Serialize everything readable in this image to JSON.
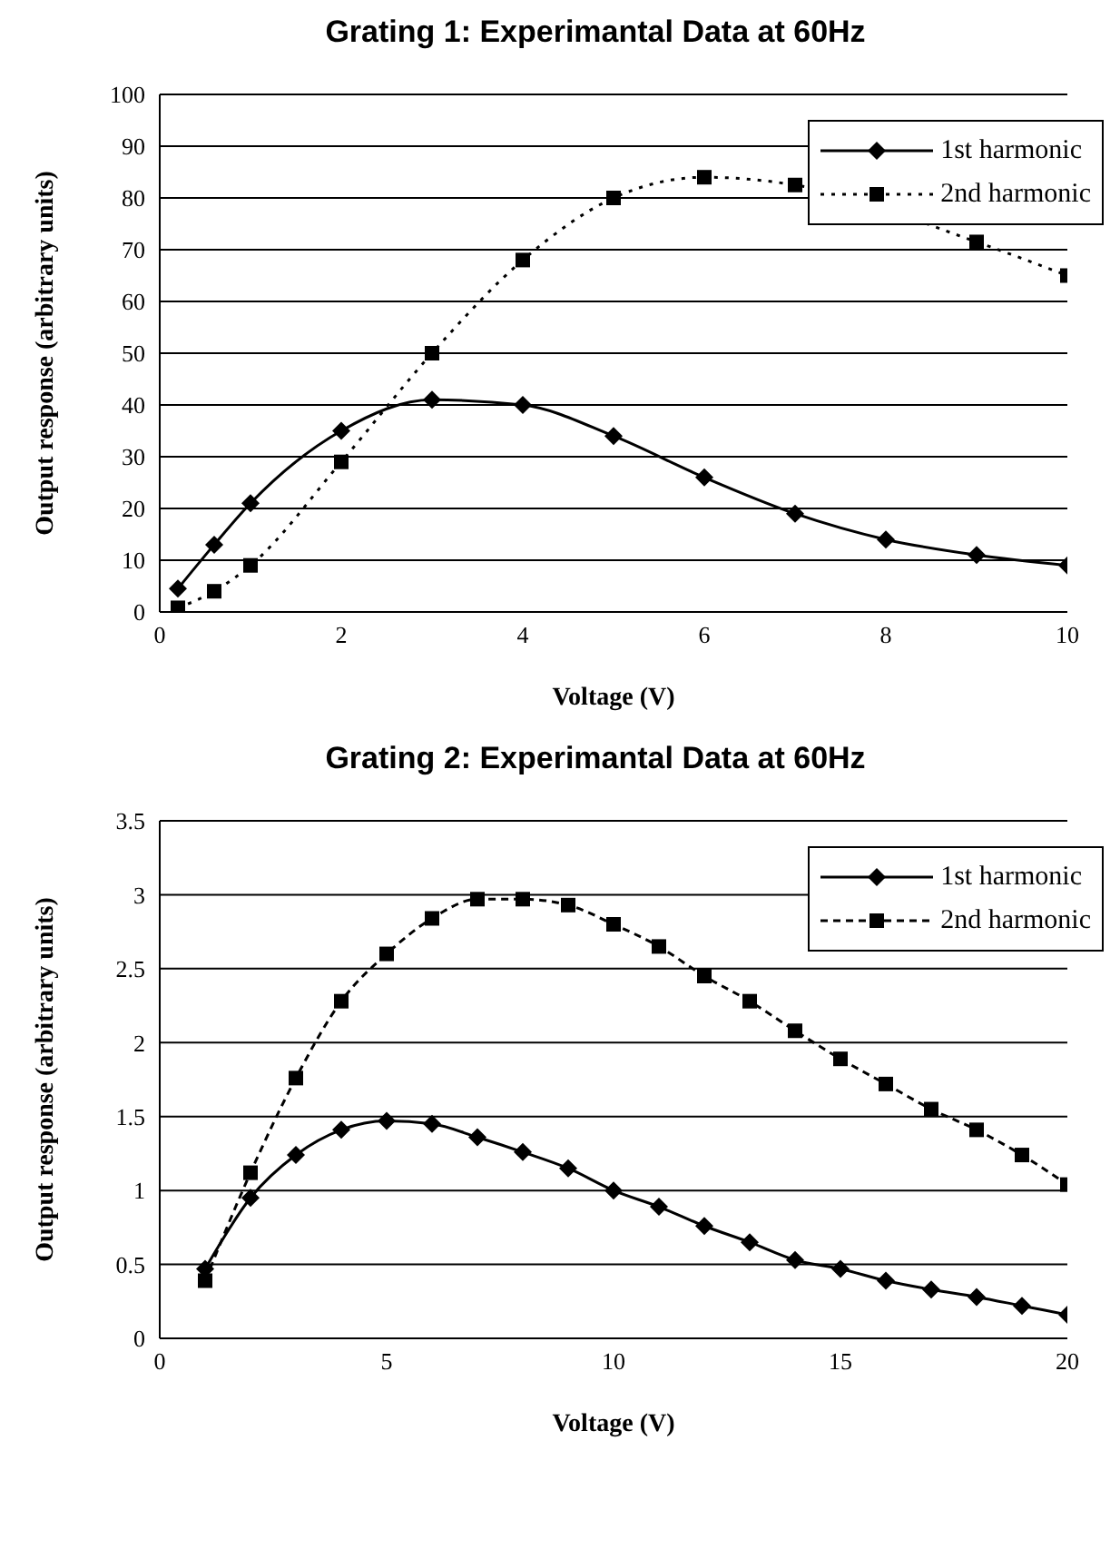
{
  "chart_data": [
    {
      "type": "line",
      "title": "Grating 1: Experimantal Data at 60Hz",
      "xlabel": "Voltage (V)",
      "ylabel": "Output response (arbitrary units)",
      "xlim": [
        0,
        10
      ],
      "xticks": [
        0,
        2,
        4,
        6,
        8,
        10
      ],
      "ylim": [
        0,
        100
      ],
      "yticks": [
        0,
        10,
        20,
        30,
        40,
        50,
        60,
        70,
        80,
        90,
        100
      ],
      "grid": "y",
      "legend": "top right",
      "series": [
        {
          "name": "1st harmonic",
          "color": "#000000",
          "marker": "diamond",
          "line_style": "solid",
          "x": [
            0.2,
            0.6,
            1,
            2,
            3,
            4,
            5,
            6,
            7,
            8,
            9,
            10
          ],
          "values": [
            4.5,
            13,
            21,
            35,
            41,
            40,
            34,
            26,
            19,
            14,
            11,
            9
          ]
        },
        {
          "name": "2nd harmonic",
          "color": "#000000",
          "marker": "square",
          "line_style": "dotted",
          "x": [
            0.2,
            0.6,
            1,
            2,
            3,
            4,
            5,
            6,
            7,
            8,
            9,
            10
          ],
          "values": [
            0.8,
            4,
            9,
            29,
            50,
            68,
            80,
            84,
            82.5,
            null,
            71.5,
            65
          ]
        }
      ]
    },
    {
      "type": "line",
      "title": "Grating 2: Experimantal Data at 60Hz",
      "xlabel": "Voltage (V)",
      "ylabel": "Output response (arbitrary units)",
      "xlim": [
        0,
        20
      ],
      "xticks": [
        0,
        5,
        10,
        15,
        20
      ],
      "ylim": [
        0,
        3.5
      ],
      "yticks": [
        0,
        0.5,
        1,
        1.5,
        2,
        2.5,
        3,
        3.5
      ],
      "grid": "y",
      "legend": "top right",
      "series": [
        {
          "name": "1st harmonic",
          "color": "#000000",
          "marker": "diamond",
          "line_style": "solid",
          "x": [
            1,
            2,
            3,
            4,
            5,
            6,
            7,
            8,
            9,
            10,
            11,
            12,
            13,
            14,
            15,
            16,
            17,
            18,
            19,
            20
          ],
          "values": [
            0.47,
            0.95,
            1.24,
            1.41,
            1.47,
            1.45,
            1.36,
            1.26,
            1.15,
            1.0,
            0.89,
            0.76,
            0.65,
            0.53,
            0.47,
            0.39,
            0.33,
            0.28,
            0.22,
            0.16
          ]
        },
        {
          "name": "2nd harmonic",
          "color": "#000000",
          "marker": "square",
          "line_style": "dashed",
          "x": [
            1,
            2,
            3,
            4,
            5,
            6,
            7,
            8,
            9,
            10,
            11,
            12,
            13,
            14,
            15,
            16,
            17,
            18,
            19,
            20
          ],
          "values": [
            0.39,
            1.12,
            1.76,
            2.28,
            2.6,
            2.84,
            2.97,
            2.97,
            2.93,
            2.8,
            2.65,
            2.45,
            2.28,
            2.08,
            1.89,
            1.72,
            1.55,
            1.41,
            1.24,
            1.04
          ]
        }
      ]
    }
  ]
}
